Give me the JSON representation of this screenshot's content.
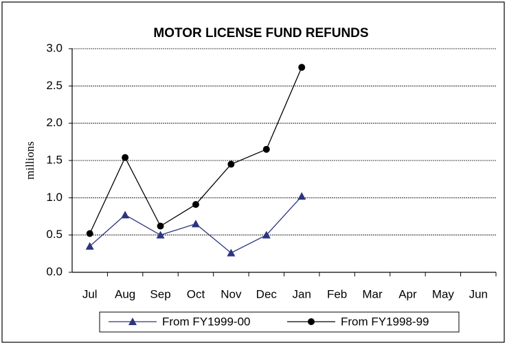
{
  "chart_data": {
    "type": "line",
    "title": "MOTOR LICENSE FUND REFUNDS",
    "ylabel": "millions",
    "categories": [
      "Jul",
      "Aug",
      "Sep",
      "Oct",
      "Nov",
      "Dec",
      "Jan",
      "Feb",
      "Mar",
      "Apr",
      "May",
      "Jun"
    ],
    "series": [
      {
        "name": "From FY1999-00",
        "color": "#2b3580",
        "marker": "triangle",
        "values": [
          0.35,
          0.77,
          0.5,
          0.65,
          0.26,
          0.5,
          1.02,
          null,
          null,
          null,
          null,
          null
        ]
      },
      {
        "name": "From FY1998-99",
        "color": "#000000",
        "marker": "circle",
        "values": [
          0.52,
          1.54,
          0.62,
          0.91,
          1.45,
          1.65,
          2.75,
          null,
          null,
          null,
          null,
          null
        ]
      }
    ],
    "ylim": [
      0,
      3
    ],
    "yticks": [
      {
        "value": 0,
        "label": "0.0"
      },
      0.5,
      {
        "value": 1,
        "label": "1.0"
      },
      1.5,
      {
        "value": 2,
        "label": "2.0"
      },
      2.5,
      {
        "value": 3,
        "label": "3.0"
      }
    ],
    "grid": true,
    "legend": "bottom"
  }
}
